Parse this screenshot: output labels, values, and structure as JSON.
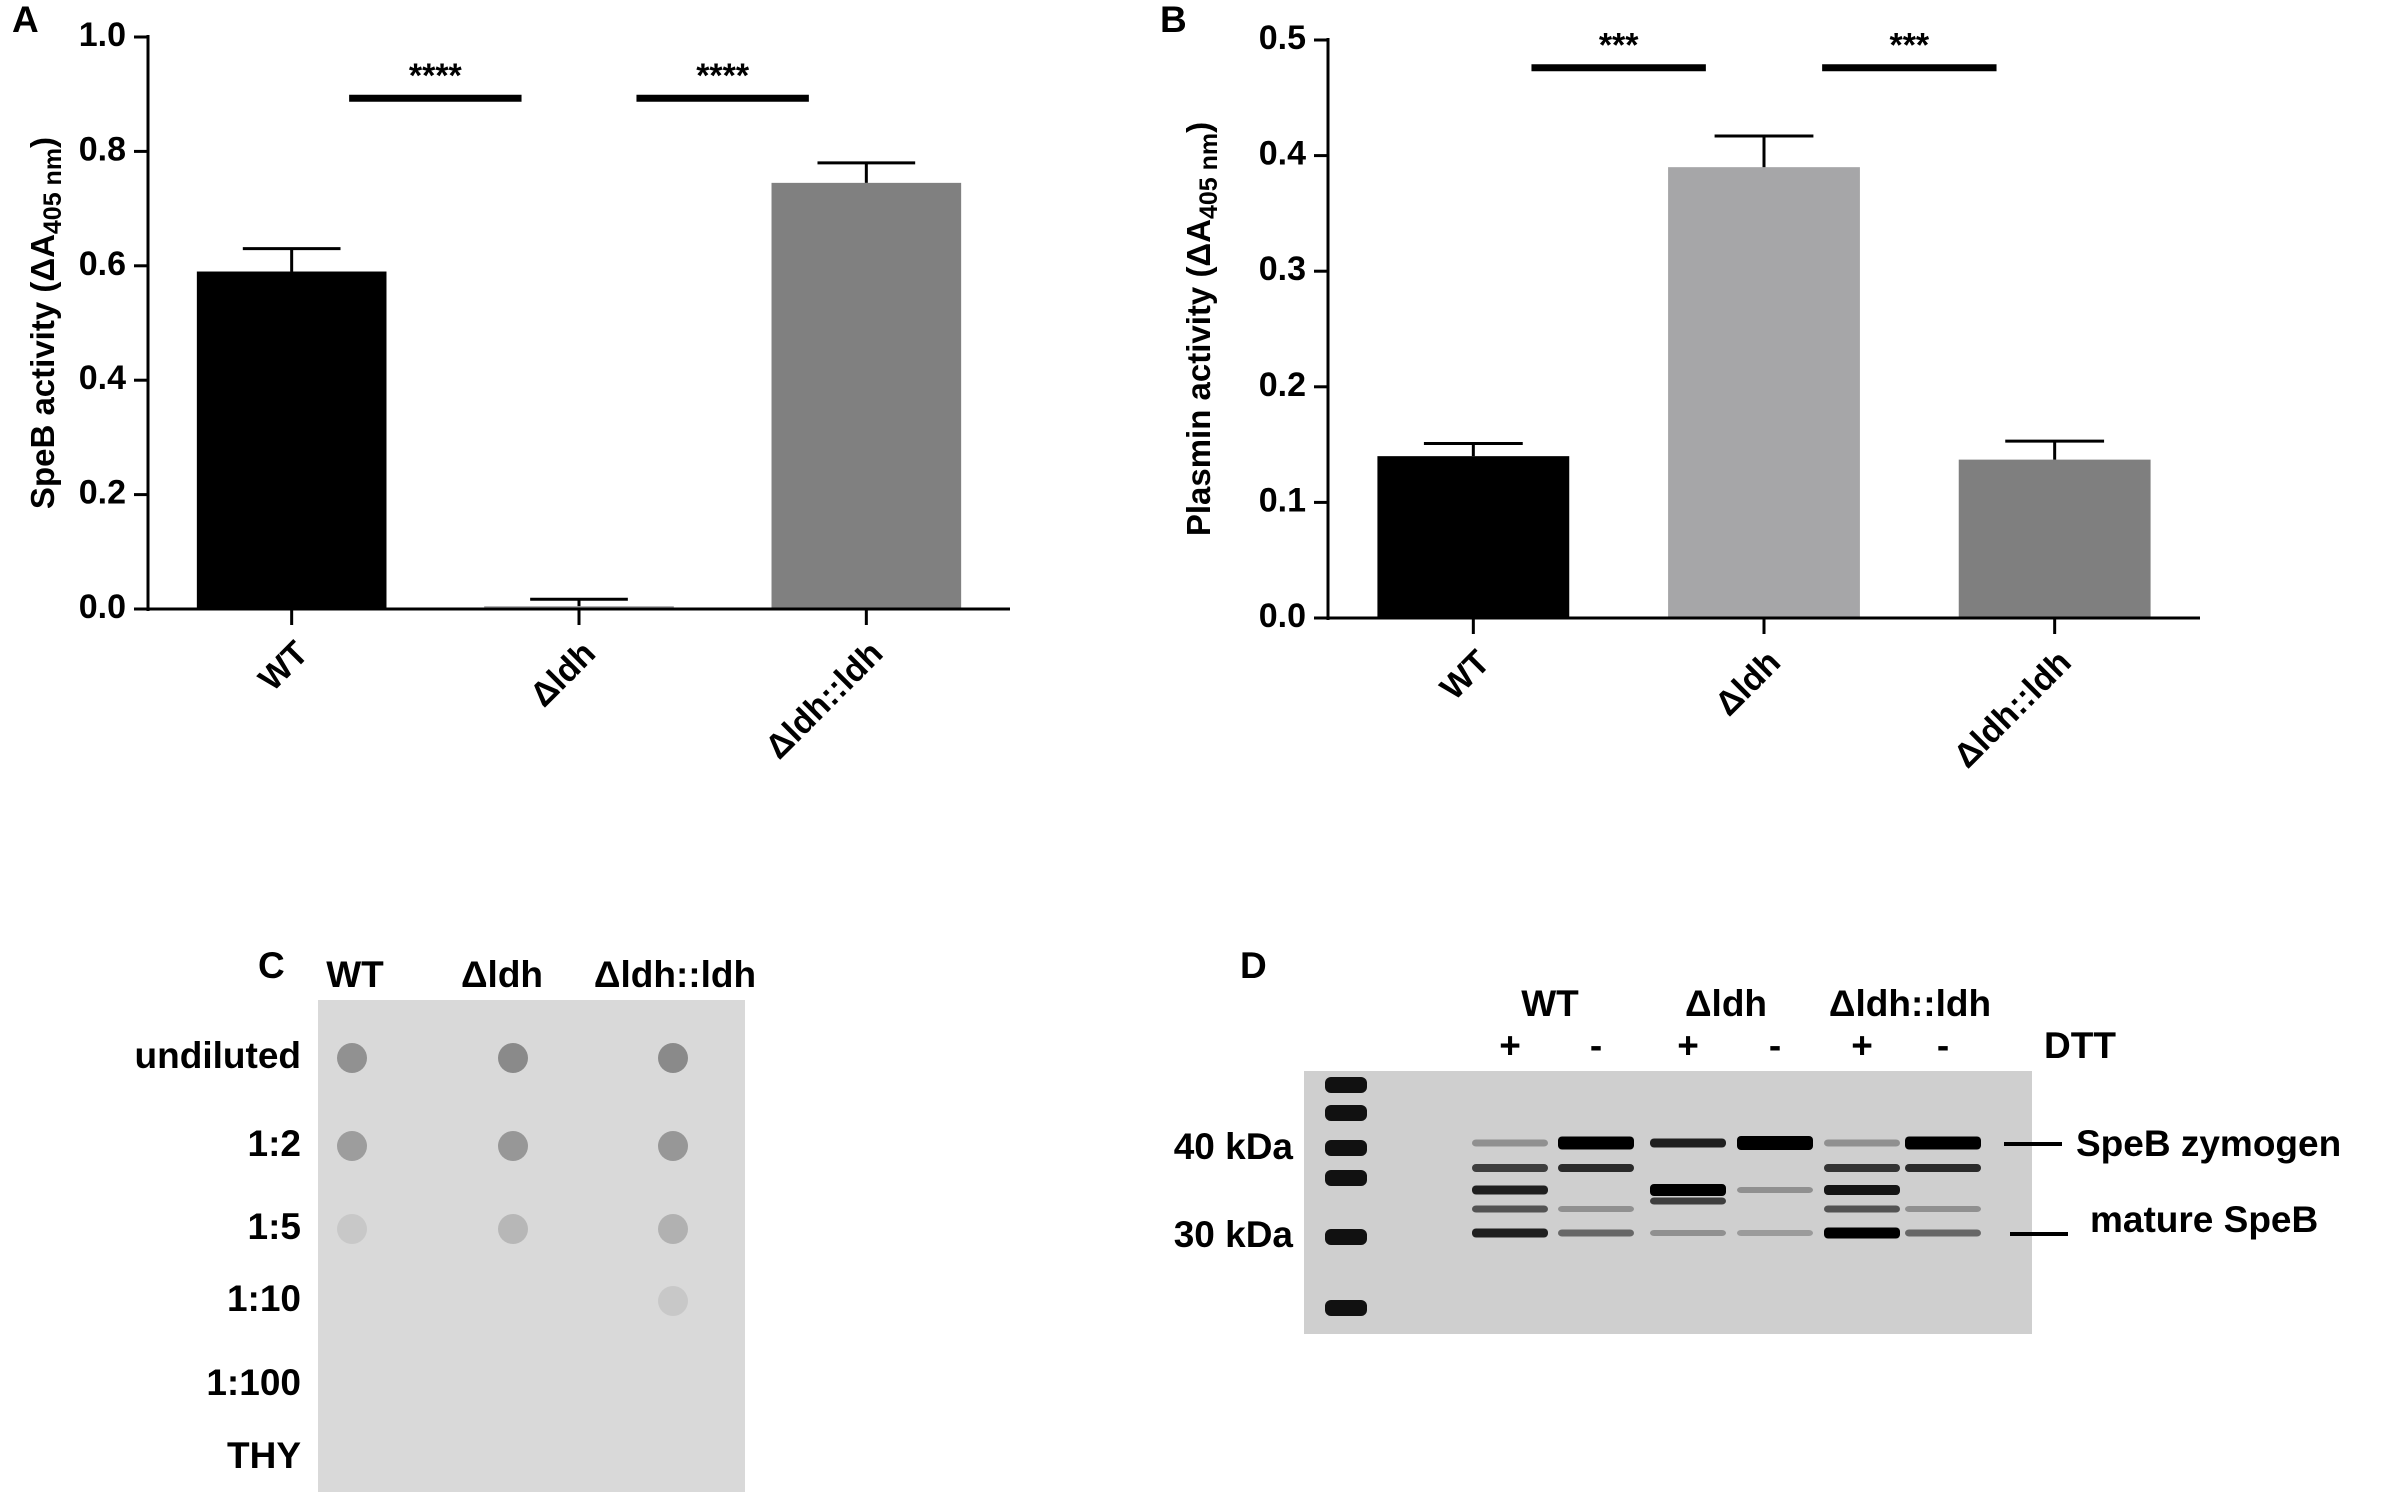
{
  "chart_data": [
    {
      "type": "bar",
      "panel": "A",
      "y_label": {
        "text": "SpeB activity (ΔA",
        "subscript": "405 nm",
        "suffix": ")"
      },
      "categories": [
        "WT",
        "Δldh",
        "Δldh::ldh"
      ],
      "values": [
        0.59,
        0.005,
        0.745
      ],
      "errors": [
        0.04,
        0.012,
        0.035
      ],
      "colors": [
        "#000000",
        "#a6a6a8",
        "#808080"
      ],
      "ylim": [
        0,
        1.0
      ],
      "yticks": [
        {
          "value": 0,
          "label": "0.0"
        },
        {
          "value": 0.2,
          "label": "0.2"
        },
        {
          "value": 0.4,
          "label": "0.4"
        },
        {
          "value": 0.6,
          "label": "0.6"
        },
        {
          "value": 0.8,
          "label": "0.8"
        },
        {
          "value": 1.0,
          "label": "1.0"
        }
      ],
      "annotations": [
        "****",
        "****"
      ]
    },
    {
      "type": "bar",
      "panel": "B",
      "y_label": {
        "text": "Plasmin activity (ΔA",
        "subscript": "405 nm",
        "suffix": ")"
      },
      "categories": [
        "WT",
        "Δldh",
        "Δldh::ldh"
      ],
      "values": [
        0.14,
        0.39,
        0.137
      ],
      "errors": [
        0.011,
        0.027,
        0.016
      ],
      "colors": [
        "#000000",
        "#a6a6a8",
        "#7f7f7f"
      ],
      "ylim": [
        0,
        0.5
      ],
      "yticks": [
        {
          "value": 0,
          "label": "0.0"
        },
        0.1,
        0.2,
        0.3,
        0.4,
        0.5
      ],
      "annotations": [
        "***",
        "***"
      ]
    }
  ],
  "panel_c": {
    "label": "C",
    "columns": [
      "WT",
      "Δldh",
      "Δldh::ldh"
    ],
    "rows": [
      "undiluted",
      "1:2",
      "1:5",
      "1:10",
      "1:100",
      "THY"
    ]
  },
  "panel_d": {
    "label": "D",
    "strains": [
      "WT",
      "Δldh",
      "Δldh::ldh"
    ],
    "lanes": [
      "+",
      "-",
      "+",
      "-",
      "+",
      "-"
    ],
    "reagent": "DTT",
    "markers": [
      "40 kDa",
      "30 kDa"
    ],
    "bands": [
      "SpeB zymogen",
      "mature SpeB"
    ]
  }
}
